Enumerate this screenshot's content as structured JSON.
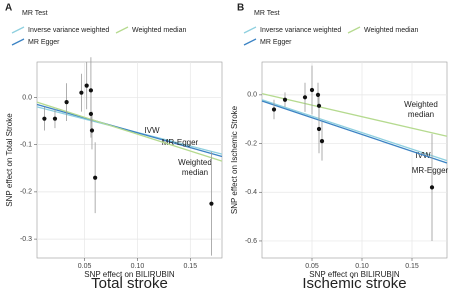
{
  "chart_data": [
    {
      "type": "scatter",
      "panel": "A",
      "title": "Total stroke",
      "x_label": "SNP effect on BILIRUBIN",
      "y_label": "SNP effect on Total Stroke",
      "legend_title": "MR Test",
      "x": [
        0.012,
        0.022,
        0.033,
        0.047,
        0.052,
        0.056,
        0.056,
        0.057,
        0.06,
        0.17
      ],
      "values": [
        -0.045,
        -0.045,
        -0.01,
        0.01,
        0.025,
        0.015,
        -0.035,
        -0.07,
        -0.17,
        -0.225
      ],
      "errors": [
        0.025,
        0.02,
        0.04,
        0.04,
        0.05,
        0.07,
        0.05,
        0.04,
        0.075,
        0.11
      ],
      "color": "#111111",
      "lines": [
        {
          "name": "Inverse variance weighted",
          "color": "#8fd0df",
          "x": [
            0.005,
            0.18
          ],
          "values": [
            -0.02,
            -0.12
          ],
          "label_lines": [
            "IVW"
          ]
        },
        {
          "name": "MR Egger",
          "color": "#3c83c4",
          "x": [
            0.005,
            0.18
          ],
          "values": [
            -0.015,
            -0.125
          ],
          "label_lines": [
            "MR-Egger"
          ]
        },
        {
          "name": "Weighted median",
          "color": "#b5da8f",
          "x": [
            0.005,
            0.18
          ],
          "values": [
            -0.01,
            -0.135
          ],
          "label_lines": [
            "Weighted",
            "median"
          ]
        }
      ],
      "xlim": [
        0.005,
        0.18
      ],
      "xticks": [
        0.05,
        {
          "value": 0.1,
          "label": "0.10"
        },
        0.15
      ],
      "ylim": [
        -0.34,
        0.075
      ],
      "yticks": [
        {
          "value": 0,
          "label": "0.0"
        },
        -0.1,
        -0.2,
        -0.3
      ],
      "grid": true
    },
    {
      "type": "scatter",
      "panel": "B",
      "title": "Ischemic stroke",
      "x_label": "SNP effect on BILIRUBIN",
      "y_label": "SNP effect on Ischemic Stroke",
      "legend_title": "MR Test",
      "x": [
        0.012,
        0.023,
        0.043,
        0.05,
        0.056,
        0.057,
        0.057,
        0.06,
        0.17
      ],
      "values": [
        -0.06,
        -0.02,
        -0.01,
        0.02,
        0.0,
        -0.045,
        -0.14,
        -0.19,
        -0.38
      ],
      "errors": [
        0.04,
        0.03,
        0.06,
        0.1,
        0.05,
        0.05,
        0.1,
        0.08,
        0.22
      ],
      "color": "#111111",
      "lines": [
        {
          "name": "Inverse variance weighted",
          "color": "#8fd0df",
          "x": [
            0,
            0.185
          ],
          "values": [
            -0.02,
            -0.27
          ],
          "label_lines": [
            "IVW"
          ]
        },
        {
          "name": "MR Egger",
          "color": "#3c83c4",
          "x": [
            0,
            0.185
          ],
          "values": [
            -0.025,
            -0.28
          ],
          "label_lines": [
            "MR-Egger"
          ]
        },
        {
          "name": "Weighted median",
          "color": "#b5da8f",
          "x": [
            0,
            0.185
          ],
          "values": [
            0.005,
            -0.17
          ],
          "label_lines": [
            "Weighted",
            "median"
          ]
        }
      ],
      "xlim": [
        0,
        0.185
      ],
      "xticks": [
        0.05,
        {
          "value": 0.1,
          "label": "0.10"
        },
        0.15
      ],
      "ylim": [
        -0.67,
        0.135
      ],
      "yticks": [
        {
          "value": 0,
          "label": "0.0"
        },
        -0.2,
        -0.4,
        -0.6
      ],
      "grid": true
    }
  ]
}
